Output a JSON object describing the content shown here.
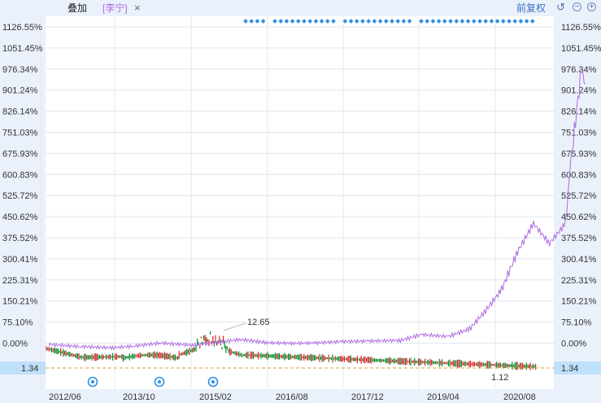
{
  "toolbar": {
    "overlay_label": "叠加",
    "stock_tag": "[李宁]",
    "close_glyph": "×",
    "adjust_label": "前复权",
    "icons": [
      "undo-icon",
      "zoom-out-icon",
      "zoom-in-icon"
    ]
  },
  "colors": {
    "up": "#d8232a",
    "down": "#0a8a2a",
    "overlay": "#b06be0",
    "accent": "#3a75c4",
    "marker": "#2f8fe3",
    "price_tag_bg": "#bfe0fb",
    "ref_line": "#d9a032"
  },
  "chart_data": {
    "type": "line",
    "title": "",
    "y_right_labels": [
      "1126.55%",
      "1051.45%",
      "976.34%",
      "901.24%",
      "826.14%",
      "751.03%",
      "675.93%",
      "600.83%",
      "525.72%",
      "450.62%",
      "375.52%",
      "300.41%",
      "225.31%",
      "150.21%",
      "75.10%",
      "0.00%"
    ],
    "y_left_labels": [
      "1126.55%",
      "1051.45%",
      "976.34%",
      "901.24%",
      "826.14%",
      "751.03%",
      "675.93%",
      "600.83%",
      "525.72%",
      "450.62%",
      "375.52%",
      "300.41%",
      "225.31%",
      "150.21%",
      "75.10%",
      "0.00%"
    ],
    "x_labels": [
      "2012/06",
      "2013/10",
      "2015/02",
      "2016/08",
      "2017/12",
      "2019/04",
      "2020/08"
    ],
    "current_price": "1.34",
    "high_label": "12.65",
    "low_label": "1.12",
    "overlay_series": {
      "name": "李宁",
      "x": [
        "2012/06",
        "2012/12",
        "2013/06",
        "2013/10",
        "2014/03",
        "2014/09",
        "2015/02",
        "2015/06",
        "2015/11",
        "2016/04",
        "2016/08",
        "2017/01",
        "2017/06",
        "2017/12",
        "2018/04",
        "2018/09",
        "2019/01",
        "2019/04",
        "2019/07",
        "2019/10",
        "2020/01",
        "2020/04",
        "2020/07",
        "2020/08",
        "2020/10",
        "2020/11"
      ],
      "values": [
        0,
        -8,
        -12,
        -6,
        5,
        -3,
        8,
        18,
        6,
        4,
        5,
        10,
        12,
        14,
        35,
        28,
        55,
        120,
        195,
        330,
        430,
        360,
        430,
        650,
        980,
        900
      ]
    }
  }
}
